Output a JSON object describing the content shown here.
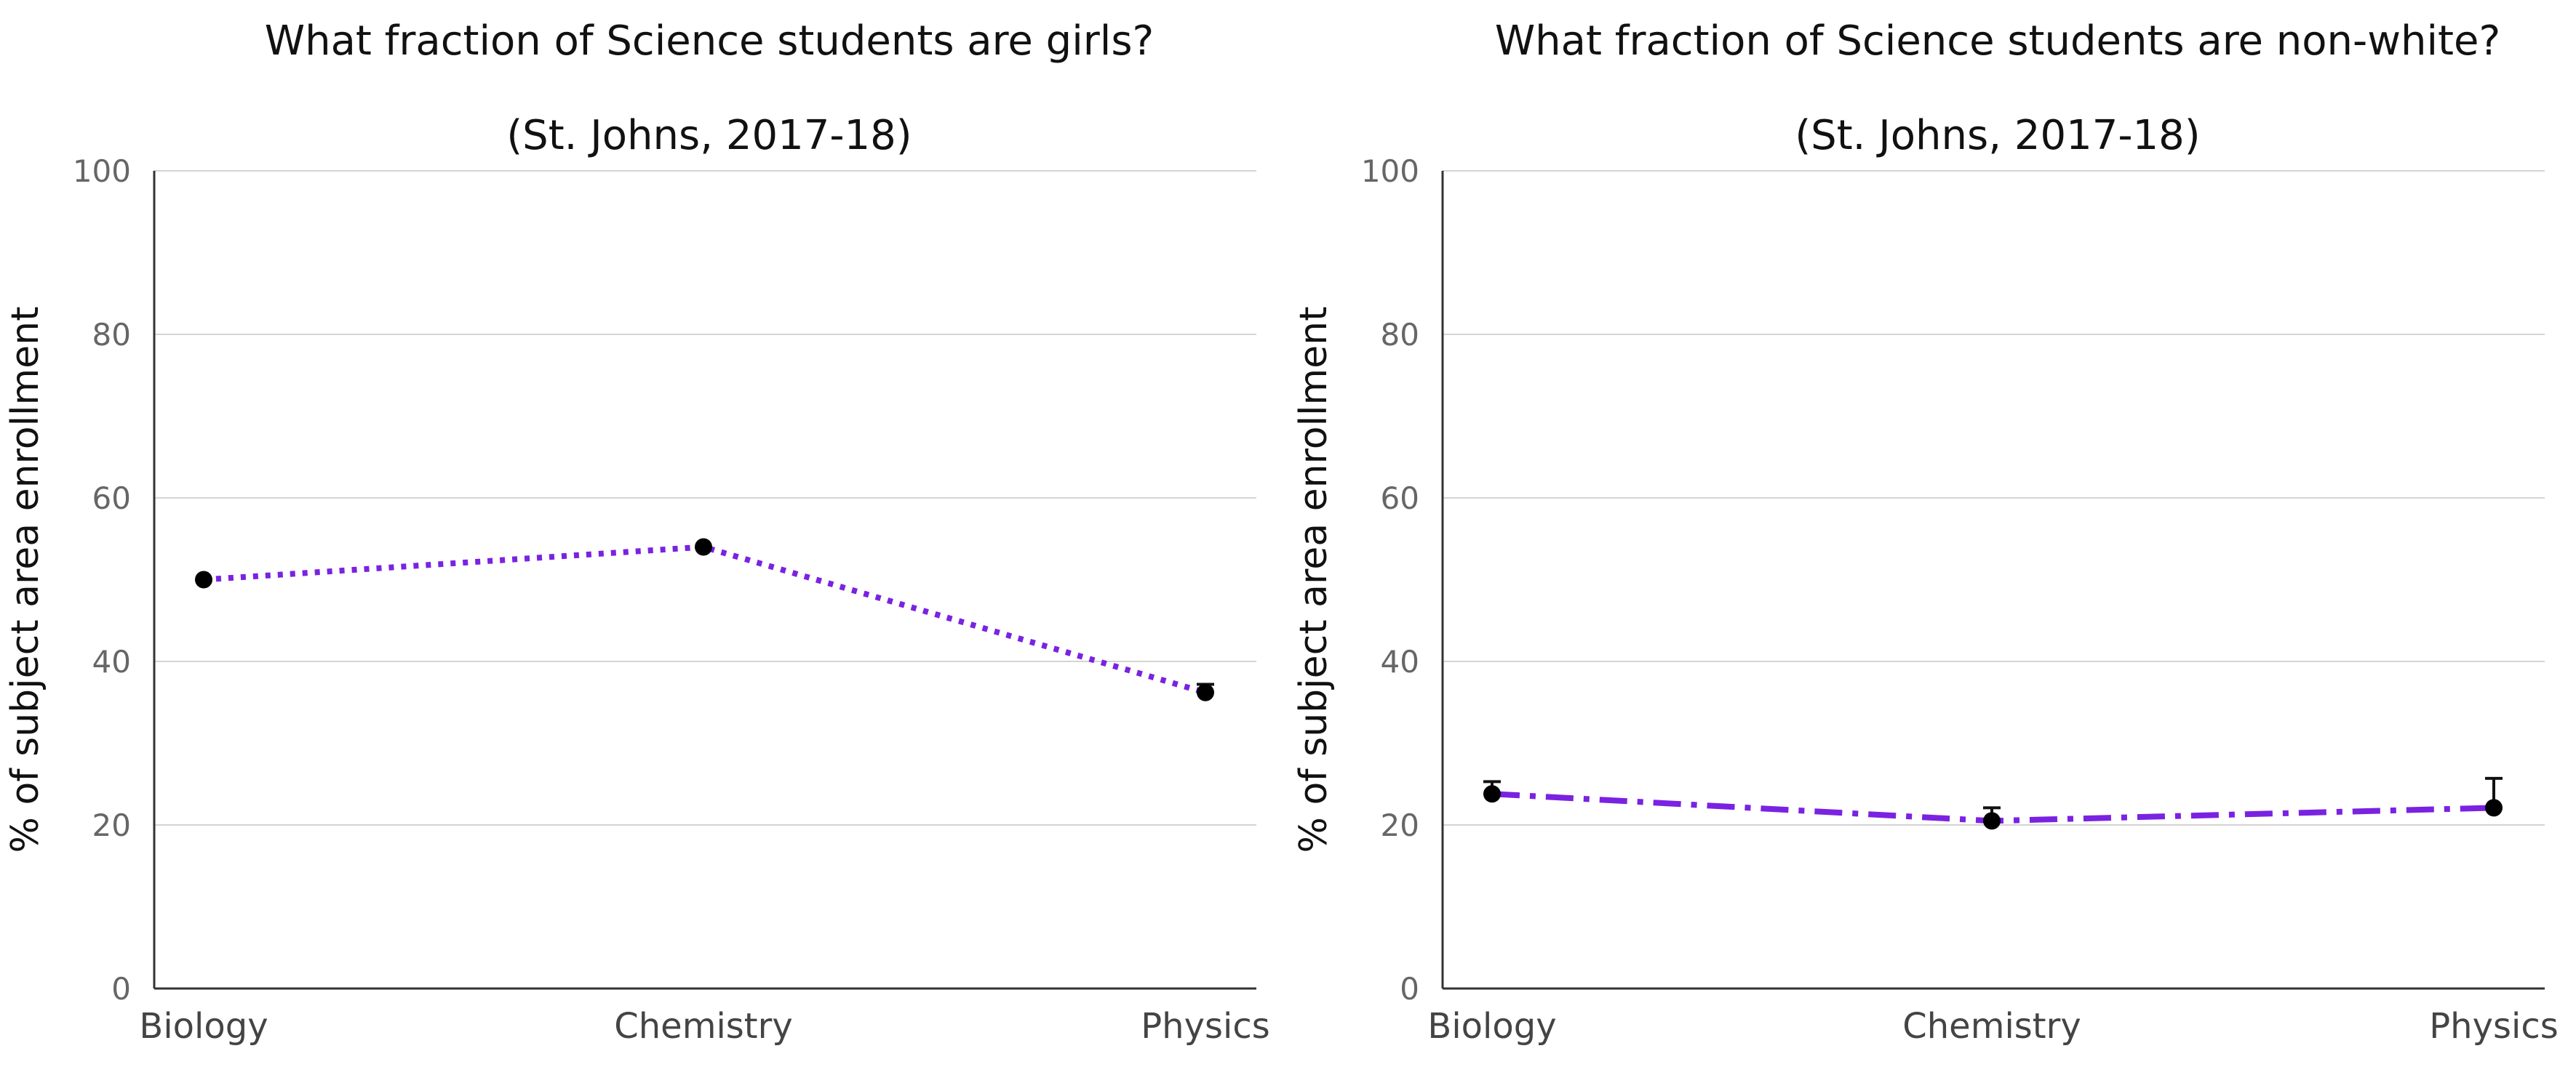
{
  "chart_data": [
    {
      "type": "line",
      "title": "What fraction of Science students are girls?",
      "subtitle": "(St. Johns, 2017-18)",
      "xlabel": "",
      "ylabel": "% of subject area enrollment",
      "categories": [
        "Biology",
        "Chemistry",
        "Physics"
      ],
      "series": [
        {
          "values": [
            50.0,
            54.0,
            36.2
          ],
          "error_upper": [
            50.0,
            54.0,
            37.2
          ],
          "line_style": "dotted"
        }
      ],
      "ylim": [
        0,
        100
      ],
      "yticks": [
        0,
        20,
        40,
        60,
        80,
        100
      ],
      "grid": true,
      "colors": {
        "line": "#7a22e2",
        "marker": "#000000"
      }
    },
    {
      "type": "line",
      "title": "What fraction of Science students are non-white?",
      "subtitle": "(St. Johns, 2017-18)",
      "xlabel": "",
      "ylabel": "% of subject area enrollment",
      "categories": [
        "Biology",
        "Chemistry",
        "Physics"
      ],
      "series": [
        {
          "values": [
            23.8,
            20.5,
            22.1
          ],
          "error_upper": [
            25.3,
            22.1,
            25.7
          ],
          "line_style": "dashdot"
        }
      ],
      "ylim": [
        0,
        100
      ],
      "yticks": [
        0,
        20,
        40,
        60,
        80,
        100
      ],
      "grid": true,
      "colors": {
        "line": "#7a22e2",
        "marker": "#000000"
      }
    }
  ]
}
